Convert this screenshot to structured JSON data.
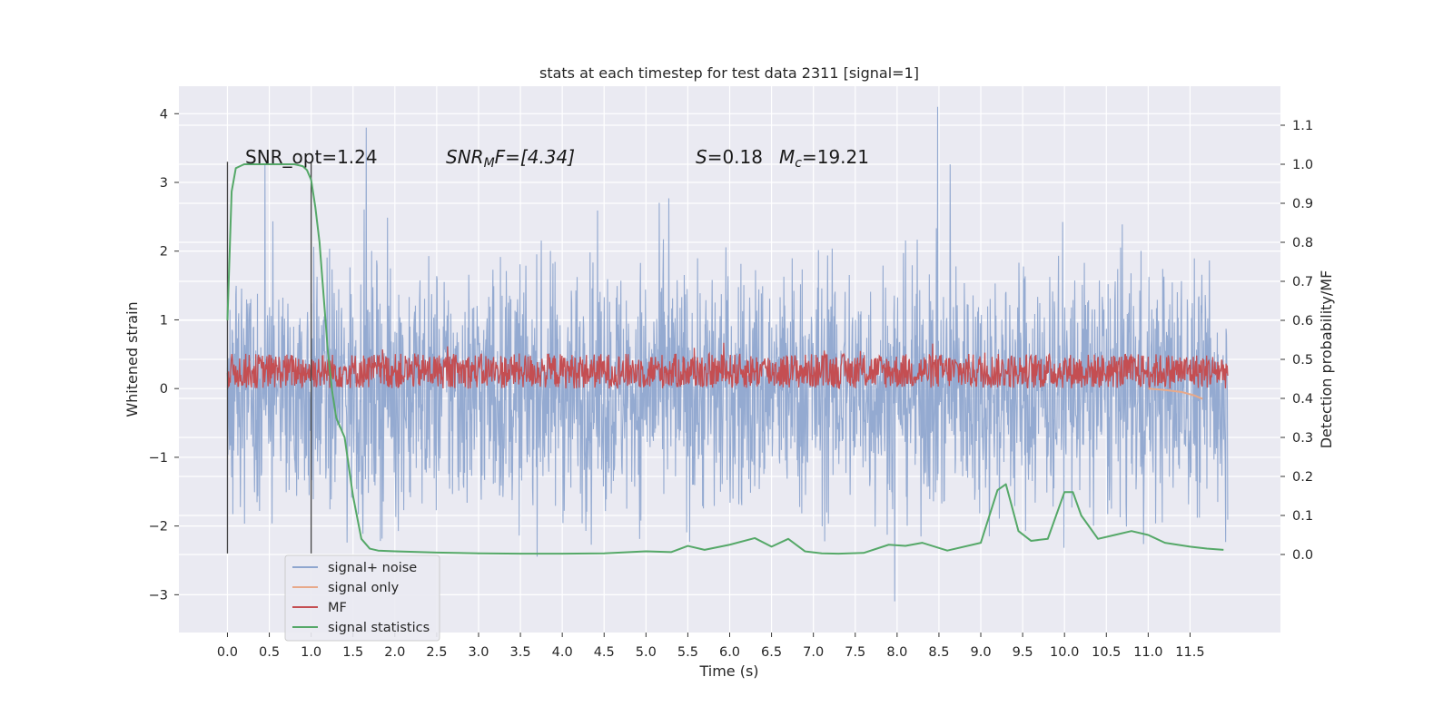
{
  "chart_data": {
    "type": "line",
    "title": "stats at each timestep for test data 2311 [signal=1]",
    "xlabel": "Time (s)",
    "ylabel": "Whitened strain",
    "ylabel_right": "Detection probability/MF",
    "xlim": [
      -0.58,
      12.58
    ],
    "ylim": [
      -3.55,
      4.4
    ],
    "ylim_right": [
      -0.2,
      1.2
    ],
    "xticks": [
      "0.0",
      "0.5",
      "1.0",
      "1.5",
      "2.0",
      "2.5",
      "3.0",
      "3.5",
      "4.0",
      "4.5",
      "5.0",
      "5.5",
      "6.0",
      "6.5",
      "7.0",
      "7.5",
      "8.0",
      "8.5",
      "9.0",
      "9.5",
      "10.0",
      "10.5",
      "11.0",
      "11.5"
    ],
    "yticks_left": [
      "−3",
      "−2",
      "−1",
      "0",
      "1",
      "2",
      "3",
      "4"
    ],
    "yticks_right": [
      "0.0",
      "0.1",
      "0.2",
      "0.3",
      "0.4",
      "0.5",
      "0.6",
      "0.7",
      "0.8",
      "0.9",
      "1.0",
      "1.1"
    ],
    "grid": true,
    "legend_position": "lower-left",
    "annotations": {
      "snr_opt": "SNR_opt=1.24",
      "snr_mf_prefix": "SNR",
      "snr_mf_sub": "M",
      "snr_mf_rest": "F=[4.34]",
      "s_var": "S",
      "s_val": "=0.18",
      "mc_var": "M",
      "mc_sub": "c",
      "mc_val": "=19.21"
    },
    "vlines": [
      0.0,
      1.0
    ],
    "series": [
      {
        "name": "signal+ noise",
        "color": "#8fa6cf",
        "axis": "left",
        "style": "dense noise, approx range −3.2 to 4.1"
      },
      {
        "name": "signal only",
        "color": "#e8a98a",
        "axis": "left",
        "x": [
          11.0,
          11.2,
          11.4,
          11.55,
          11.65
        ],
        "y": [
          0.0,
          -0.02,
          -0.05,
          -0.1,
          -0.15
        ]
      },
      {
        "name": "MF",
        "color": "#c44e52",
        "axis": "right",
        "style": "dense trace, approx range 0.4 to 0.6"
      },
      {
        "name": "signal statistics",
        "color": "#55a868",
        "axis": "right",
        "x": [
          0.0,
          0.05,
          0.1,
          0.15,
          0.2,
          0.3,
          0.4,
          0.5,
          0.6,
          0.7,
          0.8,
          0.9,
          0.95,
          1.0,
          1.05,
          1.1,
          1.15,
          1.2,
          1.25,
          1.3,
          1.4,
          1.5,
          1.6,
          1.7,
          1.8,
          2.0,
          2.5,
          3.0,
          3.5,
          4.0,
          4.5,
          5.0,
          5.3,
          5.5,
          5.7,
          6.0,
          6.3,
          6.5,
          6.7,
          6.9,
          7.1,
          7.3,
          7.6,
          7.9,
          8.1,
          8.3,
          8.6,
          9.0,
          9.2,
          9.3,
          9.35,
          9.45,
          9.6,
          9.8,
          10.0,
          10.1,
          10.2,
          10.4,
          10.6,
          10.8,
          11.0,
          11.2,
          11.5,
          11.7,
          11.9
        ],
        "y": [
          0.6,
          0.93,
          0.99,
          0.995,
          1.0,
          1.0,
          1.0,
          1.0,
          1.0,
          1.0,
          1.0,
          0.995,
          0.985,
          0.96,
          0.89,
          0.8,
          0.66,
          0.52,
          0.42,
          0.35,
          0.3,
          0.15,
          0.04,
          0.015,
          0.01,
          0.008,
          0.005,
          0.003,
          0.002,
          0.002,
          0.003,
          0.008,
          0.006,
          0.022,
          0.012,
          0.025,
          0.042,
          0.02,
          0.04,
          0.008,
          0.003,
          0.002,
          0.004,
          0.025,
          0.022,
          0.03,
          0.01,
          0.03,
          0.165,
          0.18,
          0.14,
          0.06,
          0.035,
          0.04,
          0.16,
          0.16,
          0.1,
          0.04,
          0.05,
          0.06,
          0.05,
          0.03,
          0.02,
          0.015,
          0.012
        ]
      }
    ]
  }
}
